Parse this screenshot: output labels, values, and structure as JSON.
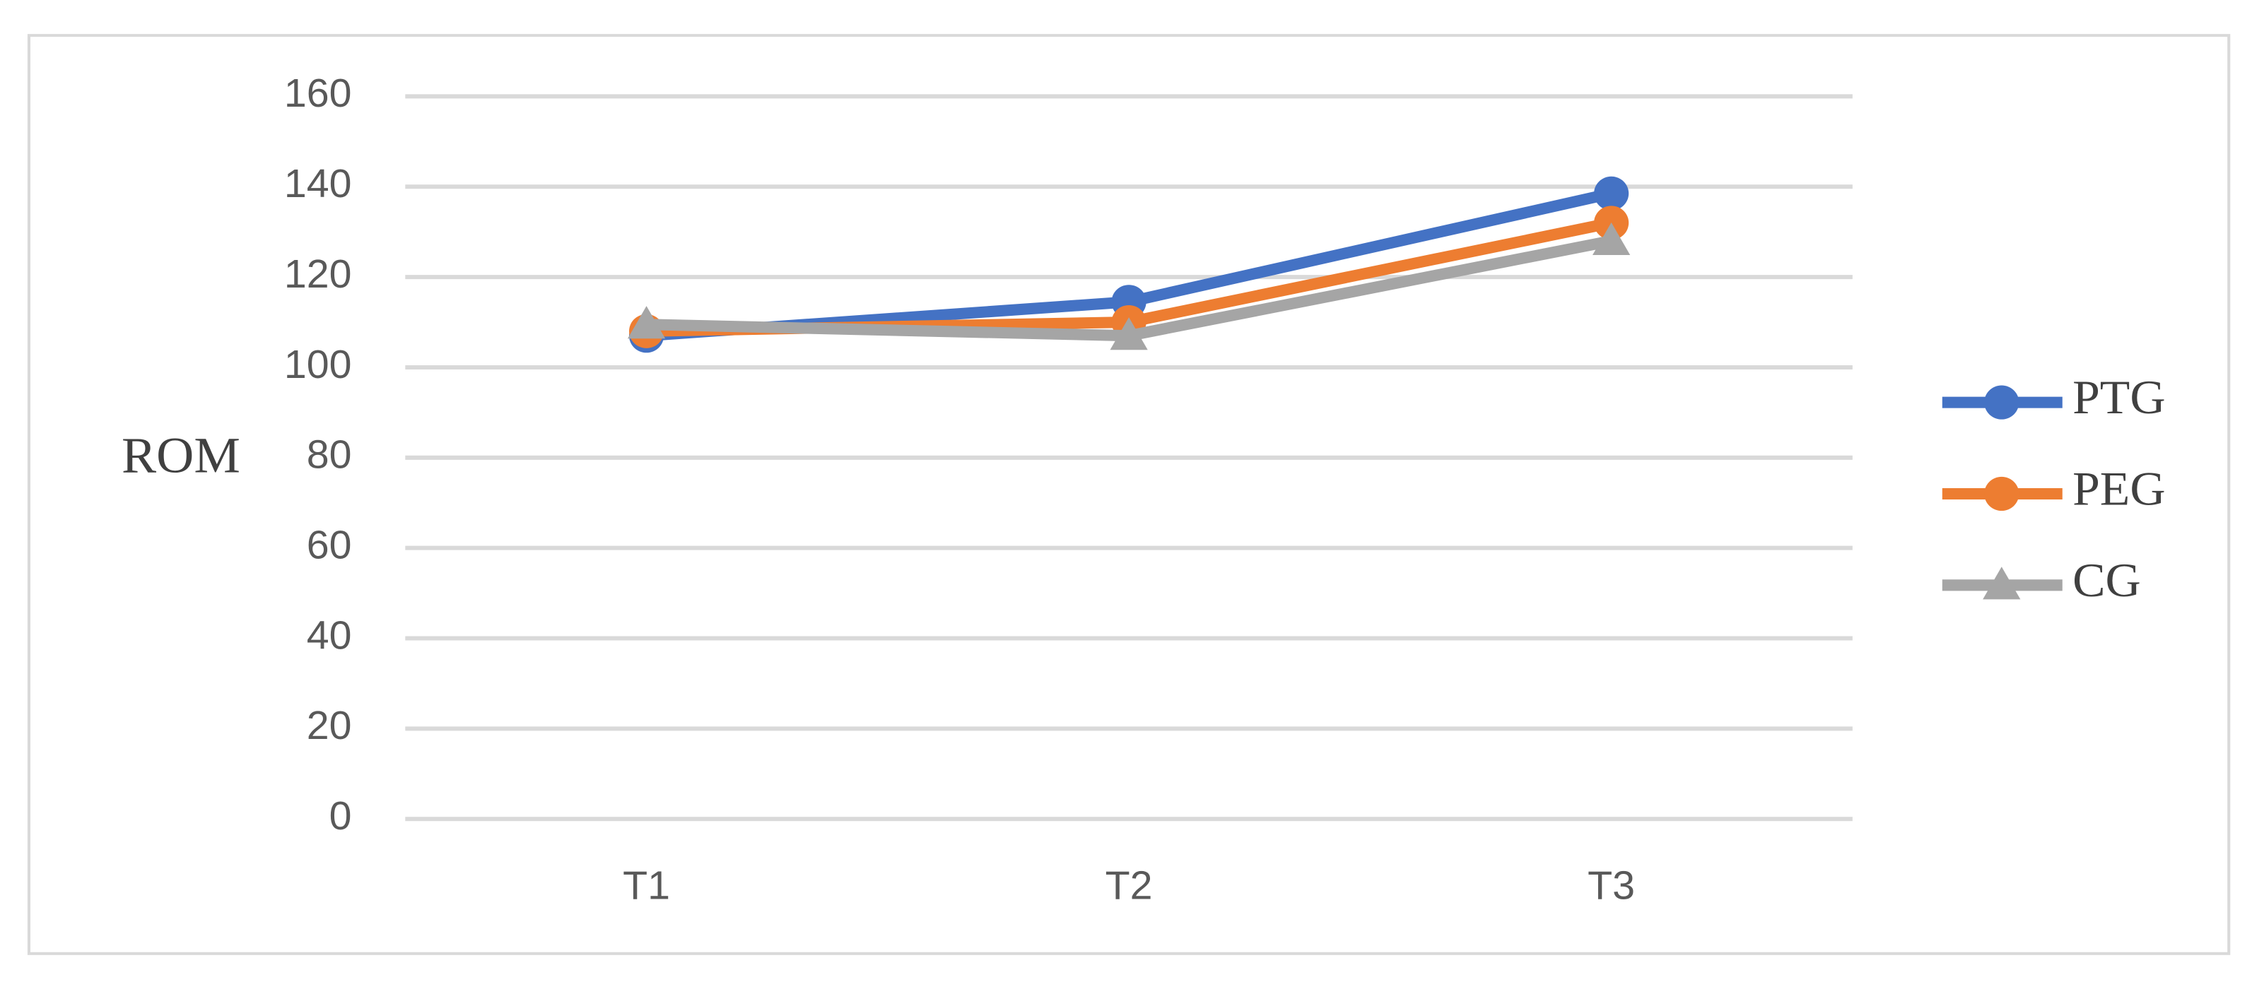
{
  "chart_data": {
    "type": "line",
    "y_label": "ROM",
    "categories": [
      "T1",
      "T2",
      "T3"
    ],
    "series": [
      {
        "name": "PTG",
        "color": "#4472c4",
        "marker": "circle",
        "values": [
          107,
          114.5,
          138.5
        ]
      },
      {
        "name": "PEG",
        "color": "#ed7d31",
        "marker": "circle",
        "values": [
          108,
          110,
          132
        ]
      },
      {
        "name": "CG",
        "color": "#a5a5a5",
        "marker": "triangle",
        "values": [
          109.5,
          107,
          128
        ]
      }
    ],
    "ylim": [
      0,
      160
    ],
    "yticks": [
      0,
      20,
      40,
      60,
      80,
      100,
      120,
      140,
      160
    ],
    "grid": true,
    "legend": "right"
  }
}
